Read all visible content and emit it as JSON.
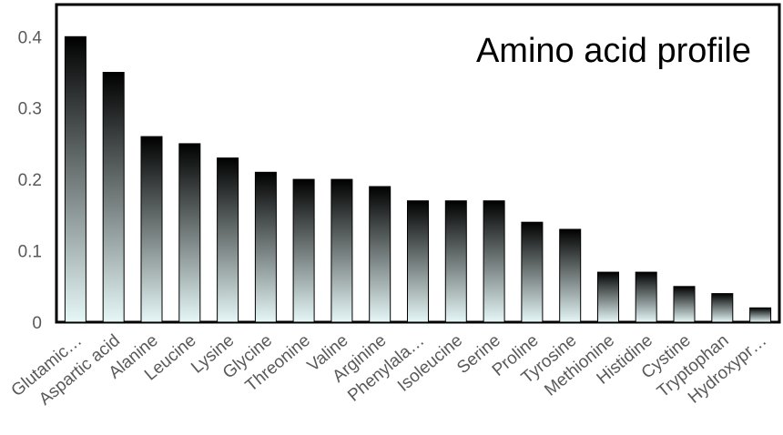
{
  "chart_data": {
    "type": "bar",
    "title": "Amino acid profile",
    "categories": [
      "Glutamic…",
      "Aspartic acid",
      "Alanine",
      "Leucine",
      "Lysine",
      "Glycine",
      "Threonine",
      "Valine",
      "Arginine",
      "Phenylala…",
      "Isoleucine",
      "Serine",
      "Proline",
      "Tyrosine",
      "Methionine",
      "Histidine",
      "Cystine",
      "Tryptophan",
      "Hydroxypr…"
    ],
    "values": [
      0.4,
      0.35,
      0.26,
      0.25,
      0.23,
      0.21,
      0.2,
      0.2,
      0.19,
      0.17,
      0.17,
      0.17,
      0.14,
      0.13,
      0.07,
      0.07,
      0.05,
      0.04,
      0.02
    ],
    "yticks": [
      "0",
      "0.1",
      "0.2",
      "0.3",
      "0.4"
    ],
    "ylim": [
      0,
      0.445
    ],
    "xlabel": "",
    "ylabel": "",
    "grid": false,
    "legend": "none",
    "bar_gradient_top": "#000000",
    "bar_gradient_bottom": "#e6f7f7"
  }
}
